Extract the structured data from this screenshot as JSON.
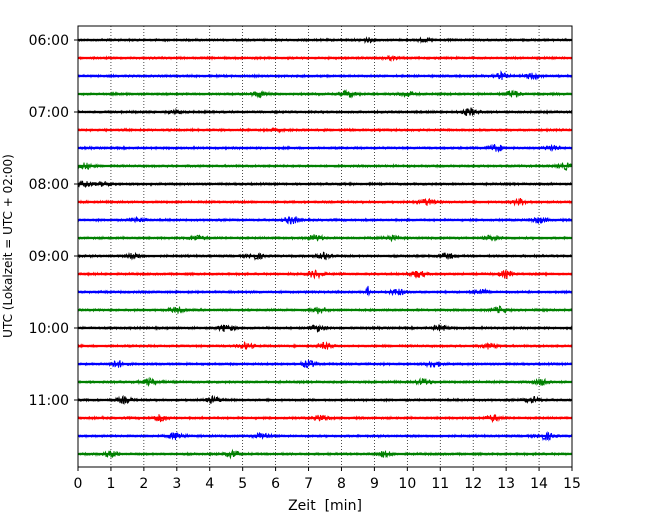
{
  "chart_data": {
    "type": "line",
    "title": "",
    "xlabel": "Zeit  [min]",
    "ylabel": "UTC (Lokalzeit = UTC + 02:00)",
    "xlim": [
      0,
      15
    ],
    "x_ticks": [
      "0",
      "1",
      "2",
      "3",
      "4",
      "5",
      "6",
      "7",
      "8",
      "9",
      "10",
      "11",
      "12",
      "13",
      "14",
      "15"
    ],
    "y_tick_labels": [
      "06:00",
      "07:00",
      "08:00",
      "09:00",
      "10:00",
      "11:00"
    ],
    "grid": "vertical dotted lines at each minute",
    "trace_colors": [
      "#000000",
      "#ff0000",
      "#0000ff",
      "#008000"
    ],
    "traces": [
      {
        "start": "06:00",
        "events": [
          [
            8.8,
            0.8
          ],
          [
            10.5,
            0.6
          ]
        ]
      },
      {
        "start": "06:15",
        "events": [
          [
            9.5,
            0.7
          ]
        ]
      },
      {
        "start": "06:30",
        "events": [
          [
            12.8,
            1.6
          ],
          [
            13.8,
            1.3
          ]
        ]
      },
      {
        "start": "06:45",
        "events": [
          [
            5.5,
            1.3
          ],
          [
            8.2,
            1.4
          ],
          [
            10.0,
            1.2
          ],
          [
            13.2,
            1.5
          ]
        ]
      },
      {
        "start": "07:00",
        "events": [
          [
            3.0,
            0.7
          ],
          [
            11.9,
            1.6
          ]
        ]
      },
      {
        "start": "07:15",
        "events": [
          [
            6.0,
            0.5
          ]
        ]
      },
      {
        "start": "07:30",
        "events": [
          [
            12.7,
            1.5
          ],
          [
            14.4,
            1.2
          ]
        ]
      },
      {
        "start": "07:45",
        "events": [
          [
            0.2,
            1.3
          ],
          [
            14.8,
            1.3
          ]
        ]
      },
      {
        "start": "08:00",
        "events": [
          [
            0.2,
            1.3
          ],
          [
            0.8,
            0.9
          ]
        ]
      },
      {
        "start": "08:15",
        "events": [
          [
            10.6,
            1.4
          ],
          [
            13.4,
            1.4
          ]
        ]
      },
      {
        "start": "08:30",
        "events": [
          [
            1.8,
            1.0
          ],
          [
            6.5,
            1.6
          ],
          [
            14.0,
            1.3
          ]
        ]
      },
      {
        "start": "08:45",
        "events": [
          [
            3.6,
            1.2
          ],
          [
            7.2,
            1.3
          ],
          [
            9.5,
            1.2
          ],
          [
            12.6,
            1.2
          ]
        ]
      },
      {
        "start": "09:00",
        "events": [
          [
            1.7,
            1.3
          ],
          [
            5.4,
            1.3
          ],
          [
            7.5,
            1.5
          ],
          [
            11.2,
            1.2
          ]
        ]
      },
      {
        "start": "09:15",
        "events": [
          [
            7.2,
            1.6
          ],
          [
            10.3,
            1.5
          ],
          [
            13.0,
            1.4
          ]
        ]
      },
      {
        "start": "09:30",
        "events": [
          [
            8.8,
            2.8
          ],
          [
            9.7,
            1.3
          ],
          [
            12.2,
            1.2
          ]
        ]
      },
      {
        "start": "09:45",
        "events": [
          [
            3.0,
            1.3
          ],
          [
            7.3,
            1.4
          ],
          [
            12.8,
            1.3
          ]
        ]
      },
      {
        "start": "10:00",
        "events": [
          [
            4.5,
            1.5
          ],
          [
            7.3,
            1.4
          ],
          [
            11.0,
            1.2
          ]
        ]
      },
      {
        "start": "10:15",
        "events": [
          [
            5.1,
            1.3
          ],
          [
            7.5,
            1.3
          ],
          [
            12.5,
            1.2
          ]
        ]
      },
      {
        "start": "10:30",
        "events": [
          [
            1.2,
            1.4
          ],
          [
            7.0,
            1.5
          ],
          [
            10.8,
            1.3
          ]
        ]
      },
      {
        "start": "10:45",
        "events": [
          [
            2.2,
            1.5
          ],
          [
            10.5,
            1.3
          ],
          [
            14.1,
            1.4
          ]
        ]
      },
      {
        "start": "11:00",
        "events": [
          [
            1.4,
            1.3
          ],
          [
            4.1,
            1.4
          ],
          [
            13.8,
            1.3
          ]
        ]
      },
      {
        "start": "11:15",
        "events": [
          [
            2.5,
            1.4
          ],
          [
            7.4,
            1.3
          ],
          [
            12.6,
            1.3
          ]
        ]
      },
      {
        "start": "11:30",
        "events": [
          [
            3.0,
            1.6
          ],
          [
            5.6,
            1.5
          ],
          [
            14.2,
            1.6
          ]
        ]
      },
      {
        "start": "11:45",
        "events": [
          [
            1.0,
            1.3
          ],
          [
            4.7,
            1.4
          ],
          [
            9.3,
            1.2
          ]
        ]
      }
    ]
  }
}
